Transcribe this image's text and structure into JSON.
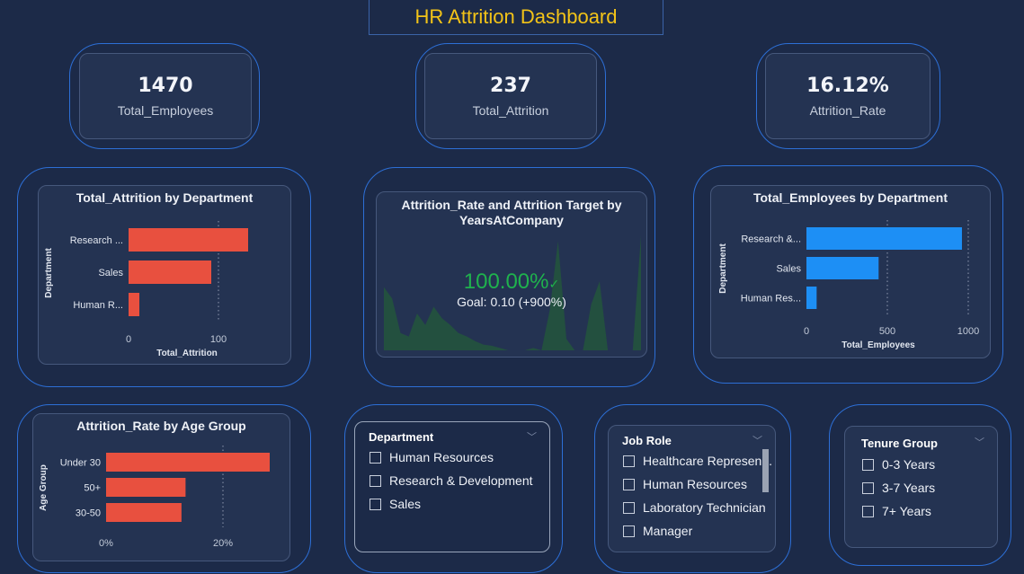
{
  "dashboard": {
    "title": "HR Attrition Dashboard"
  },
  "kpis": [
    {
      "value": "1470",
      "label": "Total_Employees"
    },
    {
      "value": "237",
      "label": "Total_Attrition"
    },
    {
      "value": "16.12%",
      "label": "Attrition_Rate"
    }
  ],
  "gauge": {
    "title": "Attrition_Rate and Attrition Target by YearsAtCompany",
    "value": "100.00%",
    "goal": "Goal: 0.10 (+900%)"
  },
  "colors": {
    "red": "#e8503f",
    "blue": "#1d8ff5",
    "green": "#1fb24d",
    "area": "#23503f"
  },
  "chart_data": [
    {
      "type": "bar",
      "title": "Total_Attrition by Department",
      "xlabel": "Total_Attrition",
      "ylabel": "Department",
      "categories": [
        "Research ...",
        "Sales",
        "Human R..."
      ],
      "values": [
        133,
        92,
        12
      ],
      "xlim": [
        0,
        150
      ],
      "ticks": [
        "0",
        "100"
      ],
      "tick_values": [
        0,
        100
      ]
    },
    {
      "type": "bar",
      "title": "Total_Employees by Department",
      "xlabel": "Total_Employees",
      "ylabel": "Department",
      "categories": [
        "Research &...",
        "Sales",
        "Human Res..."
      ],
      "values": [
        961,
        446,
        63
      ],
      "xlim": [
        0,
        1000
      ],
      "ticks": [
        "0",
        "500",
        "1000"
      ],
      "tick_values": [
        0,
        500,
        1000
      ]
    },
    {
      "type": "bar",
      "title": "Attrition_Rate by Age Group",
      "xlabel": "",
      "ylabel": "Age Group",
      "categories": [
        "Under 30",
        "50+",
        "30-50"
      ],
      "values": [
        0.28,
        0.136,
        0.129
      ],
      "xlim": [
        0,
        0.3
      ],
      "ticks": [
        "0%",
        "20%"
      ],
      "tick_values": [
        0,
        0.2
      ]
    },
    {
      "type": "area",
      "title": "Attrition_Rate and Attrition Target by YearsAtCompany",
      "values": [
        0.55,
        0.45,
        0.15,
        0.12,
        0.32,
        0.22,
        0.38,
        0.28,
        0.22,
        0.15,
        0.12,
        0.08,
        0.05,
        0.04,
        0.02,
        0.0,
        0.0,
        0.0,
        0.02,
        0.0,
        0.35,
        0.95,
        0.1,
        0.0,
        0.0,
        0.4,
        0.6,
        0.0,
        0.0,
        0.0,
        0.0,
        1.0
      ]
    }
  ],
  "slicers": {
    "department": {
      "title": "Department",
      "items": [
        "Human Resources",
        "Research & Development",
        "Sales"
      ]
    },
    "job_role": {
      "title": "Job Role",
      "items": [
        "Healthcare Represen...",
        "Human Resources",
        "Laboratory Technician",
        "Manager"
      ]
    },
    "tenure": {
      "title": "Tenure Group",
      "items": [
        "0-3 Years",
        "3-7 Years",
        "7+ Years"
      ]
    }
  },
  "icons": {
    "chevron": "chevron-down-icon",
    "check": "checkmark-icon"
  }
}
